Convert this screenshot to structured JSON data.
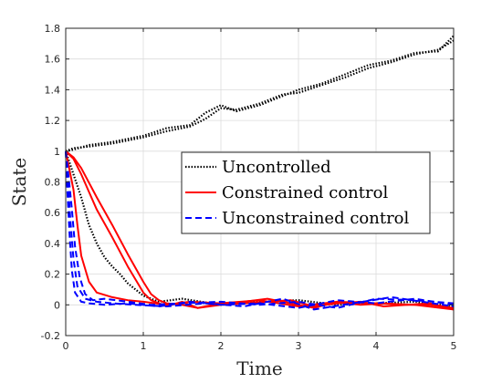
{
  "chart_data": {
    "type": "line",
    "title": "",
    "xlabel": "Time",
    "ylabel": "State",
    "xlim": [
      0,
      5
    ],
    "ylim": [
      -0.2,
      1.8
    ],
    "x_ticks": [
      0,
      1,
      2,
      3,
      4,
      5
    ],
    "x_tick_labels": [
      "0",
      "1",
      "2",
      "3",
      "4",
      "5"
    ],
    "y_ticks": [
      -0.2,
      0,
      0.2,
      0.4,
      0.6,
      0.8,
      1,
      1.2,
      1.4,
      1.6,
      1.8
    ],
    "y_tick_labels": [
      "-0.2",
      "0",
      "0.2",
      "0.4",
      "0.6",
      "0.8",
      "1",
      "1.2",
      "1.4",
      "1.6",
      "1.8"
    ],
    "grid": true,
    "legend_position": "center-right",
    "legend": [
      {
        "label": "Uncontrolled",
        "color": "#000000",
        "style": "dotted"
      },
      {
        "label": "Constrained control",
        "color": "#ff0000",
        "style": "solid"
      },
      {
        "label": "Unconstrained control",
        "color": "#0000ff",
        "style": "dashed"
      }
    ],
    "series": [
      {
        "name": "Uncontrolled",
        "color": "#000000",
        "style": "dotted",
        "x": [
          0,
          0.1,
          0.3,
          0.6,
          1.0,
          1.3,
          1.6,
          1.8,
          2.0,
          2.2,
          2.5,
          2.8,
          3.0,
          3.3,
          3.6,
          3.9,
          4.2,
          4.5,
          4.8,
          5.0
        ],
        "y": [
          1.0,
          1.02,
          1.03,
          1.05,
          1.09,
          1.13,
          1.16,
          1.21,
          1.28,
          1.27,
          1.31,
          1.37,
          1.38,
          1.43,
          1.48,
          1.54,
          1.58,
          1.63,
          1.66,
          1.72
        ]
      },
      {
        "name": "Uncontrolled",
        "color": "#000000",
        "style": "dotted",
        "x": [
          0,
          0.1,
          0.3,
          0.6,
          1.0,
          1.3,
          1.6,
          1.8,
          2.0,
          2.2,
          2.5,
          2.8,
          3.0,
          3.3,
          3.6,
          3.9,
          4.2,
          4.5,
          4.8,
          5.0
        ],
        "y": [
          1.0,
          1.01,
          1.04,
          1.06,
          1.1,
          1.15,
          1.17,
          1.25,
          1.3,
          1.26,
          1.3,
          1.36,
          1.4,
          1.44,
          1.5,
          1.56,
          1.59,
          1.64,
          1.65,
          1.75
        ]
      },
      {
        "name": "Uncontrolled",
        "color": "#000000",
        "style": "dotted",
        "x": [
          0,
          0.1,
          0.2,
          0.3,
          0.4,
          0.5,
          0.6,
          0.7,
          0.8,
          1.0,
          1.2,
          1.5,
          2.0,
          2.5,
          3.0,
          3.5,
          4.0,
          4.5,
          5.0
        ],
        "y": [
          1.0,
          0.85,
          0.7,
          0.52,
          0.4,
          0.31,
          0.25,
          0.2,
          0.14,
          0.06,
          0.02,
          0.04,
          0.0,
          0.02,
          0.03,
          0.0,
          0.01,
          0.02,
          -0.01
        ]
      },
      {
        "name": "Constrained control",
        "color": "#ff0000",
        "style": "solid",
        "x": [
          0,
          0.1,
          0.2,
          0.4,
          0.6,
          0.8,
          1.0,
          1.1,
          1.2,
          1.3,
          1.5,
          1.7,
          2.0,
          2.3,
          2.6,
          2.9,
          3.2,
          3.5,
          3.8,
          4.1,
          4.4,
          4.7,
          5.0
        ],
        "y": [
          1.0,
          0.96,
          0.89,
          0.7,
          0.52,
          0.33,
          0.15,
          0.07,
          0.03,
          0.01,
          0.0,
          -0.02,
          0.01,
          0.02,
          0.04,
          0.01,
          -0.02,
          0.02,
          0.0,
          0.01,
          0.0,
          0.01,
          -0.03
        ]
      },
      {
        "name": "Constrained control",
        "color": "#ff0000",
        "style": "solid",
        "x": [
          0,
          0.1,
          0.2,
          0.4,
          0.6,
          0.8,
          1.0,
          1.1,
          1.2,
          1.3,
          1.5,
          1.7,
          2.0,
          2.3,
          2.6,
          2.9,
          3.2,
          3.5,
          3.8,
          4.1,
          4.4,
          4.7,
          5.0
        ],
        "y": [
          1.0,
          0.95,
          0.85,
          0.62,
          0.44,
          0.25,
          0.08,
          0.03,
          0.01,
          -0.01,
          0.02,
          -0.02,
          0.0,
          0.01,
          0.02,
          0.03,
          -0.01,
          0.01,
          0.02,
          -0.01,
          0.0,
          0.0,
          -0.02
        ]
      },
      {
        "name": "Constrained control",
        "color": "#ff0000",
        "style": "solid",
        "x": [
          0,
          0.1,
          0.15,
          0.2,
          0.3,
          0.4,
          0.6,
          0.8,
          1.0,
          1.3,
          1.6,
          2.0,
          2.5,
          3.0,
          3.5,
          4.0,
          4.5,
          5.0
        ],
        "y": [
          1.0,
          0.75,
          0.52,
          0.32,
          0.15,
          0.08,
          0.05,
          0.03,
          0.02,
          0.0,
          0.02,
          0.01,
          0.03,
          -0.01,
          0.02,
          0.01,
          0.0,
          -0.03
        ]
      },
      {
        "name": "Unconstrained control",
        "color": "#0000ff",
        "style": "dashed",
        "x": [
          0,
          0.02,
          0.05,
          0.08,
          0.12,
          0.2,
          0.3,
          0.5,
          0.8,
          1.2,
          1.6,
          2.0,
          2.5,
          3.0,
          3.5,
          4.0,
          4.5,
          5.0
        ],
        "y": [
          1.0,
          0.75,
          0.45,
          0.22,
          0.08,
          0.02,
          0.01,
          0.0,
          0.01,
          -0.01,
          0.02,
          0.0,
          0.01,
          -0.02,
          0.03,
          0.01,
          0.04,
          0.0
        ]
      },
      {
        "name": "Unconstrained control",
        "color": "#0000ff",
        "style": "dashed",
        "x": [
          0,
          0.03,
          0.06,
          0.1,
          0.15,
          0.25,
          0.4,
          0.6,
          0.9,
          1.3,
          1.8,
          2.3,
          2.8,
          3.2,
          3.7,
          4.2,
          4.6,
          5.0
        ],
        "y": [
          1.0,
          0.8,
          0.55,
          0.3,
          0.12,
          0.04,
          0.02,
          0.01,
          0.0,
          -0.01,
          0.01,
          -0.01,
          0.04,
          -0.03,
          0.01,
          0.05,
          0.02,
          -0.01
        ]
      },
      {
        "name": "Unconstrained control",
        "color": "#0000ff",
        "style": "dashed",
        "x": [
          0,
          0.04,
          0.08,
          0.12,
          0.18,
          0.25,
          0.35,
          0.5,
          0.8,
          1.1,
          1.5,
          2.0,
          2.5,
          3.0,
          3.5,
          4.0,
          4.5,
          5.0
        ],
        "y": [
          1.0,
          0.82,
          0.62,
          0.38,
          0.18,
          0.07,
          0.03,
          0.04,
          0.02,
          0.0,
          0.01,
          0.02,
          0.0,
          0.02,
          -0.02,
          0.04,
          0.03,
          0.01
        ]
      }
    ]
  }
}
